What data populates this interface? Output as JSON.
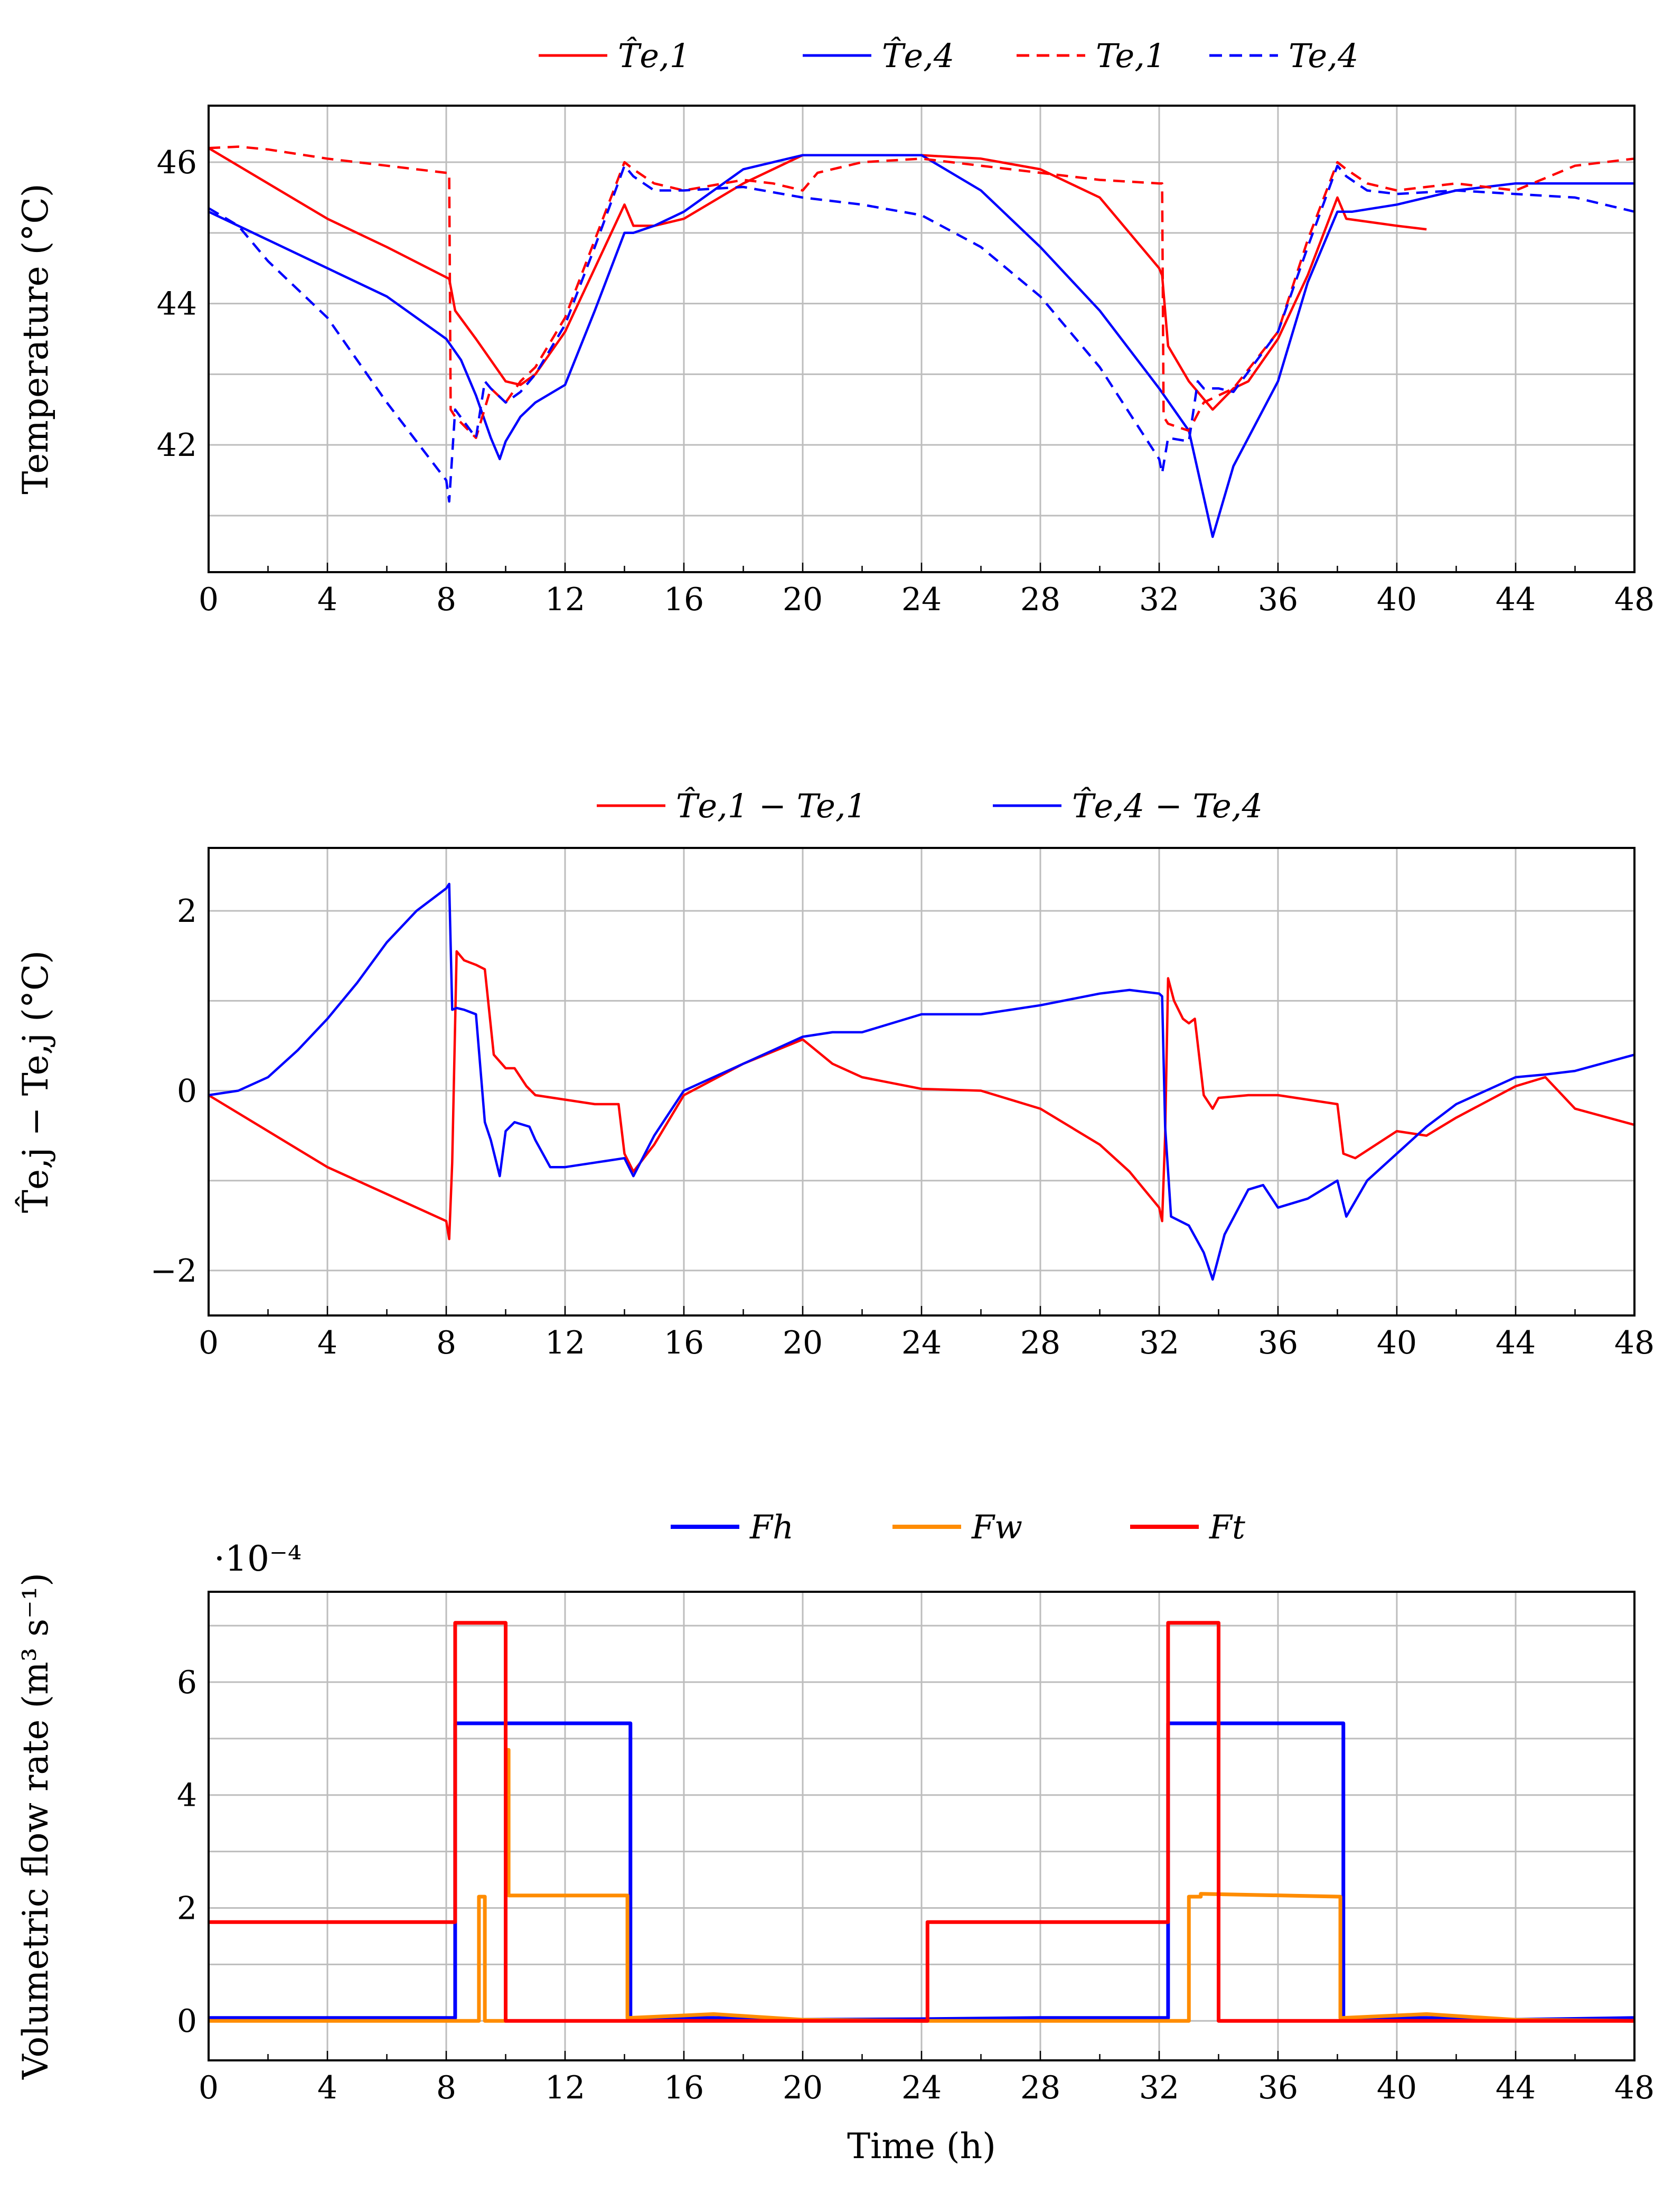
{
  "chart_data": [
    {
      "type": "line",
      "ylabel": "Temperature (°C)",
      "xlim": [
        0,
        48
      ],
      "ylim": [
        40.2,
        46.8
      ],
      "xticks": [
        "0",
        "4",
        "8",
        "12",
        "16",
        "20",
        "24",
        "28",
        "32",
        "36",
        "40",
        "44",
        "48"
      ],
      "yticks": [
        "42",
        "44",
        "46"
      ],
      "legend": [
        "T̂e,1",
        "T̂e,4",
        "Te,1",
        "Te,4"
      ],
      "series": [
        {
          "name": "T̂e,1",
          "color": "#ff0000",
          "dash": "solid",
          "x": [
            0,
            2,
            4,
            6,
            8.1,
            8.3,
            9,
            10,
            10.5,
            11,
            12,
            13,
            14,
            14.3,
            15,
            16,
            18,
            20,
            22,
            24,
            26,
            28,
            30,
            32,
            32.1,
            32.3,
            33,
            33.8,
            34.5,
            35,
            36,
            37,
            38,
            38.3,
            40,
            41
          ],
          "y": [
            46.2,
            45.7,
            45.2,
            44.8,
            44.35,
            43.9,
            43.5,
            42.9,
            42.85,
            43,
            43.6,
            44.5,
            45.4,
            45.1,
            45.1,
            45.2,
            45.7,
            46.1,
            46.1,
            46.1,
            46.05,
            45.9,
            45.5,
            44.5,
            44.4,
            43.4,
            42.9,
            42.5,
            42.8,
            42.9,
            43.5,
            44.4,
            45.5,
            45.2,
            45.1,
            45.05
          ]
        },
        {
          "name": "T̂e,4",
          "color": "#0000ff",
          "dash": "solid",
          "x": [
            0,
            2,
            4,
            6,
            8,
            8.5,
            9,
            9.5,
            9.8,
            10,
            10.5,
            11,
            12,
            13,
            14,
            14.3,
            15,
            16,
            18,
            20,
            22,
            24,
            26,
            28,
            30,
            32,
            33,
            33.8,
            34.5,
            35,
            36,
            37,
            38,
            38.5,
            40,
            42,
            44,
            46,
            48
          ],
          "y": [
            45.3,
            44.9,
            44.5,
            44.1,
            43.5,
            43.2,
            42.7,
            42.1,
            41.8,
            42.05,
            42.4,
            42.6,
            42.85,
            43.9,
            45.0,
            45.0,
            45.1,
            45.3,
            45.9,
            46.1,
            46.1,
            46.1,
            45.6,
            44.8,
            43.9,
            42.8,
            42.2,
            40.7,
            41.7,
            42.1,
            42.9,
            44.3,
            45.3,
            45.3,
            45.4,
            45.6,
            45.7,
            45.7,
            45.7
          ]
        },
        {
          "name": "Te,1",
          "color": "#ff0000",
          "dash": "dashed",
          "x": [
            0,
            1,
            2,
            4,
            6,
            8,
            8.1,
            8.15,
            8.3,
            9,
            9.5,
            10,
            10.5,
            11,
            12,
            13,
            14,
            14.3,
            15,
            16,
            18,
            19,
            20,
            20.5,
            22,
            24,
            26,
            28,
            30,
            32,
            32.1,
            32.15,
            32.3,
            33,
            33.5,
            34,
            34.5,
            36,
            37,
            38,
            38.3,
            39,
            40,
            42,
            44,
            46,
            48
          ],
          "y": [
            46.2,
            46.22,
            46.18,
            46.05,
            45.95,
            45.85,
            45.85,
            42.5,
            42.4,
            42.1,
            42.8,
            42.6,
            42.9,
            43.1,
            43.8,
            44.9,
            46.0,
            45.9,
            45.7,
            45.6,
            45.75,
            45.7,
            45.6,
            45.85,
            46.0,
            46.05,
            45.95,
            45.85,
            45.75,
            45.7,
            45.7,
            42.4,
            42.3,
            42.2,
            42.6,
            42.7,
            42.8,
            43.6,
            44.9,
            46.0,
            45.9,
            45.7,
            45.6,
            45.7,
            45.6,
            45.95,
            46.05
          ]
        },
        {
          "name": "Te,4",
          "color": "#0000ff",
          "dash": "dashed",
          "x": [
            0,
            1,
            2,
            4,
            6,
            8,
            8.1,
            8.3,
            9,
            9.3,
            9.5,
            10,
            10.5,
            11,
            12,
            13,
            14,
            14.3,
            15,
            16,
            18,
            20,
            22,
            24,
            26,
            28,
            30,
            32,
            32.1,
            32.3,
            33,
            33.3,
            33.5,
            34,
            34.5,
            36,
            37,
            38,
            38.3,
            39,
            40,
            42,
            44,
            46,
            48
          ],
          "y": [
            45.35,
            45.1,
            44.6,
            43.8,
            42.6,
            41.5,
            41.2,
            42.5,
            42.1,
            42.9,
            42.8,
            42.6,
            42.75,
            43.0,
            43.7,
            44.8,
            45.95,
            45.8,
            45.6,
            45.6,
            45.65,
            45.5,
            45.4,
            45.25,
            44.8,
            44.1,
            43.1,
            41.8,
            41.6,
            42.1,
            42.05,
            42.9,
            42.8,
            42.8,
            42.75,
            43.6,
            44.8,
            45.95,
            45.8,
            45.6,
            45.55,
            45.6,
            45.55,
            45.5,
            45.3
          ]
        }
      ]
    },
    {
      "type": "line",
      "ylabel": "T̂e,j − Te,j (°C)",
      "xlim": [
        0,
        48
      ],
      "ylim": [
        -2.5,
        2.7
      ],
      "xticks": [
        "0",
        "4",
        "8",
        "12",
        "16",
        "20",
        "24",
        "28",
        "32",
        "36",
        "40",
        "44",
        "48"
      ],
      "yticks": [
        "−2",
        "0",
        "2"
      ],
      "legend": [
        "T̂e,1 − Te,1",
        "T̂e,4 − Te,4"
      ],
      "series": [
        {
          "name": "T̂e,1 − Te,1",
          "color": "#ff0000",
          "x": [
            0,
            2,
            4,
            6,
            8,
            8.1,
            8.2,
            8.35,
            8.6,
            9,
            9.3,
            9.6,
            10,
            10.3,
            10.7,
            11,
            12,
            13,
            13.8,
            14,
            14.3,
            15,
            16,
            18,
            20,
            21,
            22,
            24,
            26,
            28,
            30,
            31,
            32,
            32.1,
            32.2,
            32.3,
            32.5,
            32.8,
            33,
            33.2,
            33.5,
            33.8,
            34,
            35,
            36,
            37,
            38,
            38.2,
            38.6,
            40,
            41,
            42,
            44,
            45,
            46,
            48
          ],
          "y": [
            -0.05,
            -0.45,
            -0.85,
            -1.15,
            -1.45,
            -1.65,
            -0.8,
            1.55,
            1.45,
            1.4,
            1.35,
            0.4,
            0.25,
            0.25,
            0.05,
            -0.05,
            -0.1,
            -0.15,
            -0.15,
            -0.7,
            -0.9,
            -0.6,
            -0.05,
            0.3,
            0.57,
            0.3,
            0.15,
            0.02,
            0.0,
            -0.2,
            -0.6,
            -0.9,
            -1.3,
            -1.45,
            -0.5,
            1.25,
            1.0,
            0.8,
            0.75,
            0.8,
            -0.05,
            -0.2,
            -0.08,
            -0.05,
            -0.05,
            -0.1,
            -0.15,
            -0.7,
            -0.75,
            -0.45,
            -0.5,
            -0.3,
            0.05,
            0.15,
            -0.2,
            -0.38
          ]
        },
        {
          "name": "T̂e,4 − Te,4",
          "color": "#0000ff",
          "x": [
            0,
            1,
            2,
            3,
            4,
            5,
            6,
            7,
            8,
            8.1,
            8.2,
            8.35,
            8.6,
            9,
            9.3,
            9.5,
            9.8,
            10,
            10.3,
            10.8,
            11,
            11.5,
            12,
            13,
            14,
            14.3,
            15,
            16,
            18,
            20,
            21,
            22,
            24,
            26,
            28,
            30,
            31,
            32,
            32.1,
            32.2,
            32.4,
            33,
            33.5,
            33.8,
            34.2,
            35,
            35.5,
            36,
            37,
            38,
            38.3,
            39,
            40,
            41,
            42,
            44,
            45,
            46,
            48
          ],
          "y": [
            -0.05,
            0.0,
            0.15,
            0.45,
            0.8,
            1.2,
            1.65,
            2.0,
            2.25,
            2.3,
            0.9,
            0.92,
            0.9,
            0.85,
            -0.35,
            -0.55,
            -0.95,
            -0.45,
            -0.35,
            -0.4,
            -0.55,
            -0.85,
            -0.85,
            -0.8,
            -0.75,
            -0.95,
            -0.5,
            0.0,
            0.3,
            0.6,
            0.65,
            0.65,
            0.85,
            0.85,
            0.95,
            1.08,
            1.12,
            1.08,
            1.05,
            -0.4,
            -1.4,
            -1.5,
            -1.8,
            -2.1,
            -1.6,
            -1.1,
            -1.05,
            -1.3,
            -1.2,
            -1.0,
            -1.4,
            -1.0,
            -0.7,
            -0.4,
            -0.15,
            0.15,
            0.18,
            0.22,
            0.4
          ]
        }
      ]
    },
    {
      "type": "line",
      "xlabel": "Time (h)",
      "ylabel": "Volumetric flow rate (m³ s⁻¹)",
      "scale_label": "·10⁻⁴",
      "xlim": [
        0,
        48
      ],
      "ylim": [
        -0.7,
        7.6
      ],
      "xticks": [
        "0",
        "4",
        "8",
        "12",
        "16",
        "20",
        "24",
        "28",
        "32",
        "36",
        "40",
        "44",
        "48"
      ],
      "yticks": [
        "0",
        "2",
        "4",
        "6"
      ],
      "legend": [
        "Fh",
        "Fw",
        "Ft"
      ],
      "series": [
        {
          "name": "Fh",
          "color": "#0000ff",
          "x": [
            0,
            8.3,
            8.3,
            14.2,
            14.2,
            17,
            20,
            24,
            28,
            32.3,
            32.3,
            38.2,
            38.2,
            41,
            44,
            48
          ],
          "y": [
            0.05,
            0.05,
            5.27,
            5.27,
            0.05,
            0.05,
            0.02,
            0.03,
            0.05,
            0.05,
            5.27,
            5.27,
            0.05,
            0.05,
            0.02,
            0.05
          ]
        },
        {
          "name": "Fw",
          "color": "#ff8c00",
          "x": [
            0,
            9.1,
            9.1,
            9.3,
            9.3,
            10.0,
            10.0,
            10.1,
            10.1,
            14.1,
            14.1,
            17,
            20,
            24,
            33.0,
            33.0,
            33.4,
            33.4,
            38.1,
            38.1,
            41,
            44,
            48
          ],
          "y": [
            0.0,
            0.0,
            2.2,
            2.2,
            0.0,
            0.0,
            4.8,
            4.8,
            2.22,
            2.22,
            0.05,
            0.12,
            0.02,
            0.0,
            0.0,
            2.2,
            2.2,
            2.25,
            2.2,
            0.05,
            0.12,
            0.02,
            0.0
          ]
        },
        {
          "name": "Ft",
          "color": "#ff0000",
          "x": [
            0,
            8.3,
            8.3,
            10.0,
            10.0,
            24.2,
            24.2,
            32.3,
            32.3,
            34.0,
            34.0,
            48
          ],
          "y": [
            1.75,
            1.75,
            7.05,
            7.05,
            0.0,
            0.0,
            1.75,
            1.75,
            7.05,
            7.05,
            0.0,
            0.0
          ]
        }
      ]
    }
  ]
}
